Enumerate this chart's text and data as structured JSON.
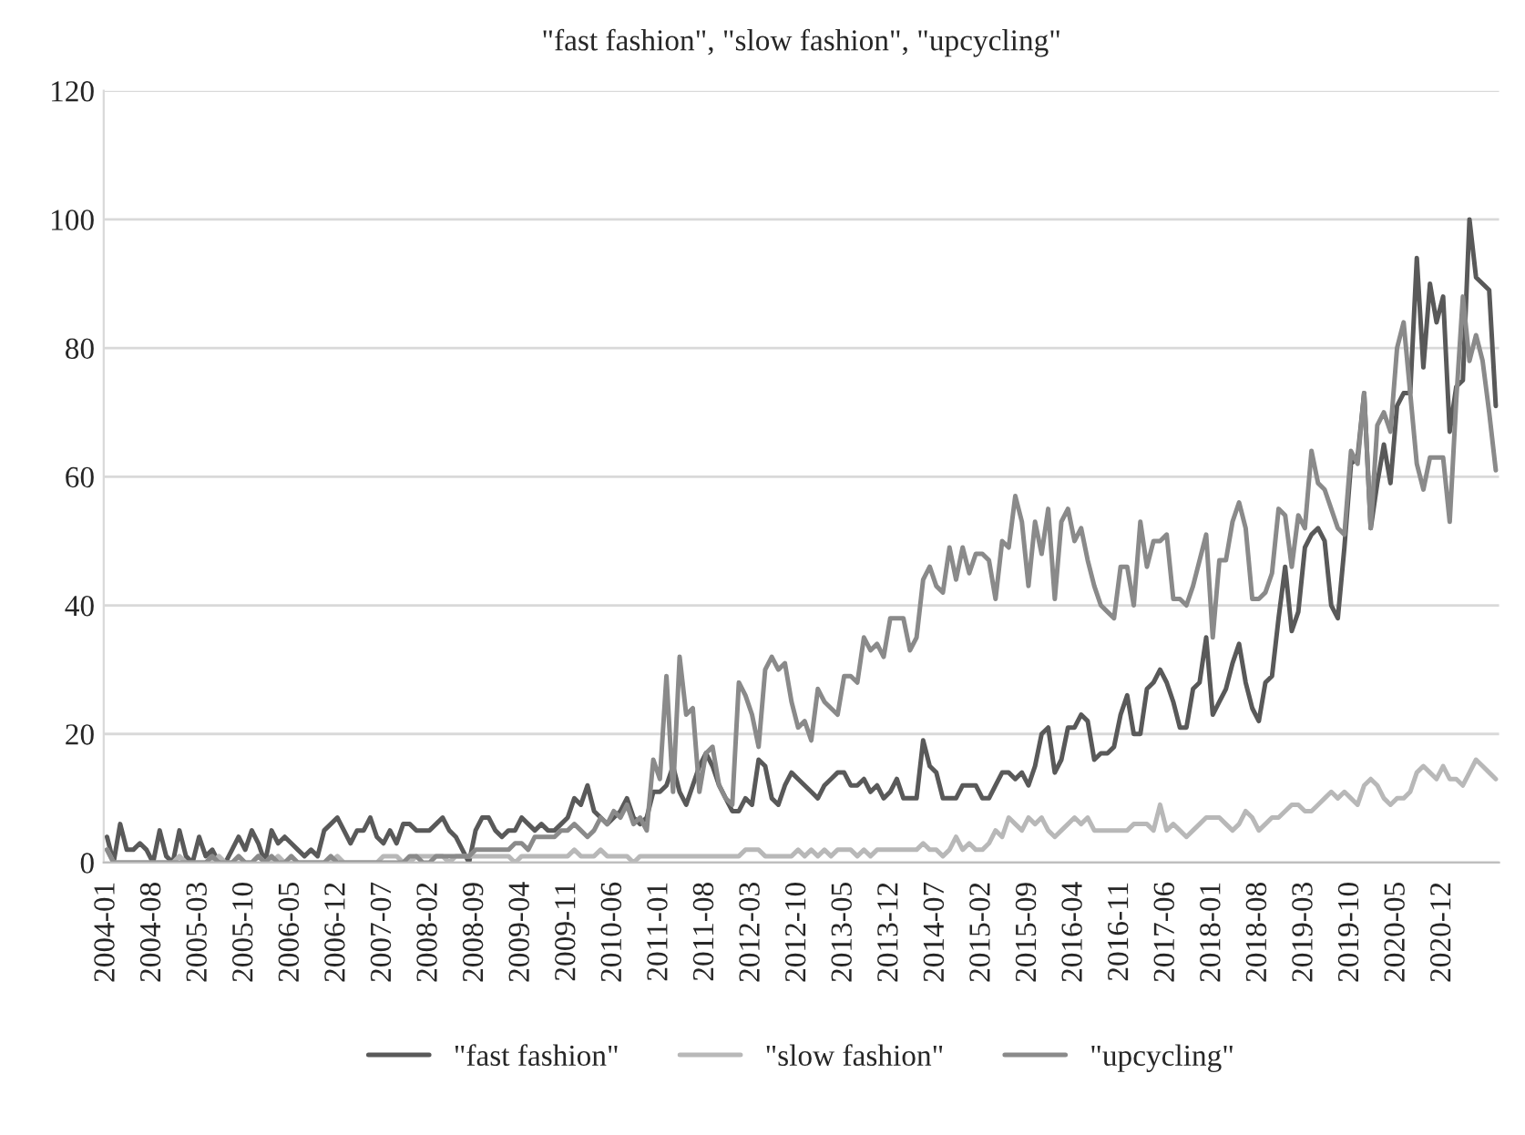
{
  "chart_data": {
    "type": "line",
    "title": "\"fast fashion\", \"slow fashion\", \"upcycling\"",
    "categories": [
      "2004-01",
      null,
      null,
      null,
      null,
      null,
      null,
      "2004-08",
      null,
      null,
      null,
      null,
      null,
      null,
      "2005-03",
      null,
      null,
      null,
      null,
      null,
      null,
      "2005-10",
      null,
      null,
      null,
      null,
      null,
      null,
      "2006-05",
      null,
      null,
      null,
      null,
      null,
      null,
      "2006-12",
      null,
      null,
      null,
      null,
      null,
      null,
      "2007-07",
      null,
      null,
      null,
      null,
      null,
      null,
      "2008-02",
      null,
      null,
      null,
      null,
      null,
      null,
      "2008-09",
      null,
      null,
      null,
      null,
      null,
      null,
      "2009-04",
      null,
      null,
      null,
      null,
      null,
      null,
      "2009-11",
      null,
      null,
      null,
      null,
      null,
      null,
      "2010-06",
      null,
      null,
      null,
      null,
      null,
      null,
      "2011-01",
      null,
      null,
      null,
      null,
      null,
      null,
      "2011-08",
      null,
      null,
      null,
      null,
      null,
      null,
      "2012-03",
      null,
      null,
      null,
      null,
      null,
      null,
      "2012-10",
      null,
      null,
      null,
      null,
      null,
      null,
      "2013-05",
      null,
      null,
      null,
      null,
      null,
      null,
      "2013-12",
      null,
      null,
      null,
      null,
      null,
      null,
      "2014-07",
      null,
      null,
      null,
      null,
      null,
      null,
      "2015-02",
      null,
      null,
      null,
      null,
      null,
      null,
      "2015-09",
      null,
      null,
      null,
      null,
      null,
      null,
      "2016-04",
      null,
      null,
      null,
      null,
      null,
      null,
      "2016-11",
      null,
      null,
      null,
      null,
      null,
      null,
      "2017-06",
      null,
      null,
      null,
      null,
      null,
      null,
      "2018-01",
      null,
      null,
      null,
      null,
      null,
      null,
      "2018-08",
      null,
      null,
      null,
      null,
      null,
      null,
      "2019-03",
      null,
      null,
      null,
      null,
      null,
      null,
      "2019-10",
      null,
      null,
      null,
      null,
      null,
      null,
      "2020-05",
      null,
      null,
      null,
      null,
      null,
      null,
      "2020-12",
      null,
      null,
      null,
      null,
      null,
      null,
      null,
      null
    ],
    "series": [
      {
        "name": "\"fast fashion\"",
        "color": "#595959",
        "values": [
          4,
          0,
          6,
          2,
          2,
          3,
          2,
          0,
          5,
          1,
          0,
          5,
          1,
          0,
          4,
          1,
          2,
          0,
          0,
          2,
          4,
          2,
          5,
          3,
          0,
          5,
          3,
          4,
          3,
          2,
          1,
          2,
          1,
          5,
          6,
          7,
          5,
          3,
          5,
          5,
          7,
          4,
          3,
          5,
          3,
          6,
          6,
          5,
          5,
          5,
          6,
          7,
          5,
          4,
          2,
          0,
          5,
          7,
          7,
          5,
          4,
          5,
          5,
          7,
          6,
          5,
          6,
          5,
          5,
          6,
          7,
          10,
          9,
          12,
          8,
          7,
          6,
          7,
          8,
          10,
          7,
          6,
          7,
          11,
          11,
          12,
          15,
          11,
          9,
          12,
          15,
          17,
          15,
          12,
          10,
          8,
          8,
          10,
          9,
          16,
          15,
          10,
          9,
          12,
          14,
          13,
          12,
          11,
          10,
          12,
          13,
          14,
          14,
          12,
          12,
          13,
          11,
          12,
          10,
          11,
          13,
          10,
          10,
          10,
          19,
          15,
          14,
          10,
          10,
          10,
          12,
          12,
          12,
          10,
          10,
          12,
          14,
          14,
          13,
          14,
          12,
          15,
          20,
          21,
          14,
          16,
          21,
          21,
          23,
          22,
          16,
          17,
          17,
          18,
          23,
          26,
          20,
          20,
          27,
          28,
          30,
          28,
          25,
          21,
          21,
          27,
          28,
          35,
          23,
          25,
          27,
          31,
          34,
          28,
          24,
          22,
          28,
          29,
          38,
          46,
          36,
          39,
          49,
          51,
          52,
          50,
          40,
          38,
          49,
          62,
          63,
          73,
          52,
          59,
          65,
          59,
          71,
          73,
          73,
          94,
          77,
          90,
          84,
          88,
          67,
          74,
          75,
          100,
          91,
          90,
          89,
          71
        ]
      },
      {
        "name": "\"slow fashion\"",
        "color": "#b8b8b8",
        "values": [
          2,
          0,
          0,
          0,
          0,
          0,
          0,
          0,
          0,
          0,
          0,
          1,
          0,
          0,
          0,
          0,
          0,
          1,
          0,
          0,
          0,
          0,
          0,
          1,
          0,
          0,
          1,
          0,
          0,
          0,
          0,
          0,
          0,
          0,
          0,
          1,
          0,
          0,
          0,
          0,
          0,
          0,
          1,
          1,
          1,
          0,
          0,
          1,
          1,
          1,
          1,
          1,
          0,
          1,
          1,
          1,
          1,
          1,
          1,
          1,
          1,
          1,
          0,
          1,
          1,
          1,
          1,
          1,
          1,
          1,
          1,
          2,
          1,
          1,
          1,
          2,
          1,
          1,
          1,
          1,
          0,
          1,
          1,
          1,
          1,
          1,
          1,
          1,
          1,
          1,
          1,
          1,
          1,
          1,
          1,
          1,
          1,
          2,
          2,
          2,
          1,
          1,
          1,
          1,
          1,
          2,
          1,
          2,
          1,
          2,
          1,
          2,
          2,
          2,
          1,
          2,
          1,
          2,
          2,
          2,
          2,
          2,
          2,
          2,
          3,
          2,
          2,
          1,
          2,
          4,
          2,
          3,
          2,
          2,
          3,
          5,
          4,
          7,
          6,
          5,
          7,
          6,
          7,
          5,
          4,
          5,
          6,
          7,
          6,
          7,
          5,
          5,
          5,
          5,
          5,
          5,
          6,
          6,
          6,
          5,
          9,
          5,
          6,
          5,
          4,
          5,
          6,
          7,
          7,
          7,
          6,
          5,
          6,
          8,
          7,
          5,
          6,
          7,
          7,
          8,
          9,
          9,
          8,
          8,
          9,
          10,
          11,
          10,
          11,
          10,
          9,
          12,
          13,
          12,
          10,
          9,
          10,
          10,
          11,
          14,
          15,
          14,
          13,
          15,
          13,
          13,
          12,
          14,
          16,
          15,
          14,
          13
        ]
      },
      {
        "name": "\"upcycling\"",
        "color": "#8a8a8a",
        "values": [
          2,
          0,
          0,
          0,
          0,
          0,
          0,
          0,
          0,
          0,
          0,
          0,
          0,
          0,
          0,
          0,
          1,
          0,
          0,
          0,
          1,
          0,
          0,
          1,
          0,
          1,
          0,
          0,
          1,
          0,
          0,
          0,
          0,
          0,
          1,
          0,
          0,
          0,
          0,
          0,
          0,
          0,
          0,
          0,
          0,
          0,
          1,
          1,
          0,
          0,
          1,
          1,
          1,
          1,
          1,
          1,
          2,
          2,
          2,
          2,
          2,
          2,
          3,
          3,
          2,
          4,
          4,
          4,
          4,
          5,
          5,
          6,
          5,
          4,
          5,
          7,
          6,
          8,
          7,
          9,
          6,
          7,
          5,
          16,
          13,
          29,
          11,
          32,
          23,
          24,
          11,
          17,
          18,
          12,
          10,
          9,
          28,
          26,
          23,
          18,
          30,
          32,
          30,
          31,
          25,
          21,
          22,
          19,
          27,
          25,
          24,
          23,
          29,
          29,
          28,
          35,
          33,
          34,
          32,
          38,
          38,
          38,
          33,
          35,
          44,
          46,
          43,
          42,
          49,
          44,
          49,
          45,
          48,
          48,
          47,
          41,
          50,
          49,
          57,
          53,
          43,
          53,
          48,
          55,
          41,
          53,
          55,
          50,
          52,
          47,
          43,
          40,
          39,
          38,
          46,
          46,
          40,
          53,
          46,
          50,
          50,
          51,
          41,
          41,
          40,
          43,
          47,
          51,
          35,
          47,
          47,
          53,
          56,
          52,
          41,
          41,
          42,
          45,
          55,
          54,
          46,
          54,
          52,
          64,
          59,
          58,
          55,
          52,
          51,
          64,
          62,
          73,
          52,
          68,
          70,
          67,
          80,
          84,
          73,
          62,
          58,
          63,
          63,
          63,
          53,
          72,
          88,
          78,
          82,
          78,
          70,
          61
        ]
      }
    ],
    "ylim": [
      0,
      120
    ],
    "yticks": [
      0,
      20,
      40,
      60,
      80,
      100,
      120
    ],
    "grid": "y",
    "legend": "bottom",
    "line_style": "solid",
    "marker": "none"
  }
}
